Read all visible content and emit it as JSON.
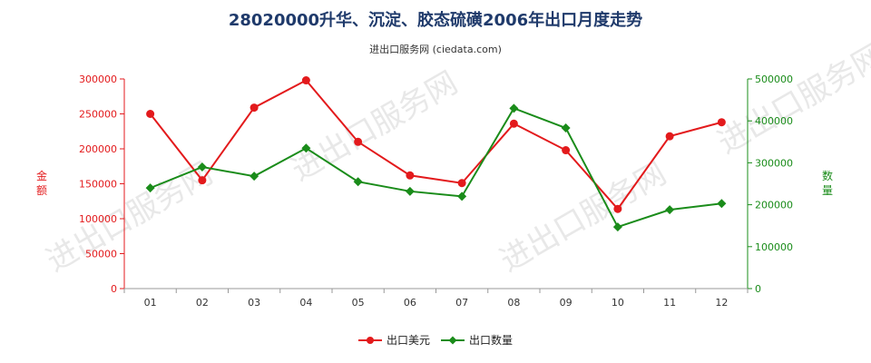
{
  "title": "28020000升华、沉淀、胶态硫磺2006年出口月度走势",
  "subtitle": "进出口服务网 (ciedata.com)",
  "watermark": "进出口服务网",
  "chart_data": {
    "type": "line",
    "categories": [
      "01",
      "02",
      "03",
      "04",
      "05",
      "06",
      "07",
      "08",
      "09",
      "10",
      "11",
      "12"
    ],
    "series": [
      {
        "name": "出口美元",
        "axis": "left",
        "color": "#e31a1c",
        "values": [
          250000,
          155000,
          259000,
          298000,
          210000,
          162000,
          151000,
          236000,
          198000,
          114000,
          218000,
          238000
        ]
      },
      {
        "name": "出口数量",
        "axis": "right",
        "color": "#1a8c1a",
        "values": [
          240000,
          290000,
          268000,
          335000,
          255000,
          232000,
          220000,
          430000,
          383000,
          147000,
          188000,
          203000
        ]
      }
    ],
    "y_left": {
      "label": "金额",
      "min": 0,
      "max": 300000,
      "ticks": [
        "0",
        "50000",
        "100000",
        "150000",
        "200000",
        "250000",
        "300000"
      ],
      "color": "#e31a1c"
    },
    "y_right": {
      "label": "数量",
      "min": 0,
      "max": 500000,
      "ticks": [
        "0",
        "100000",
        "200000",
        "300000",
        "400000",
        "500000"
      ],
      "color": "#1a8c1a"
    },
    "legend_position": "bottom-center",
    "grid": false
  }
}
